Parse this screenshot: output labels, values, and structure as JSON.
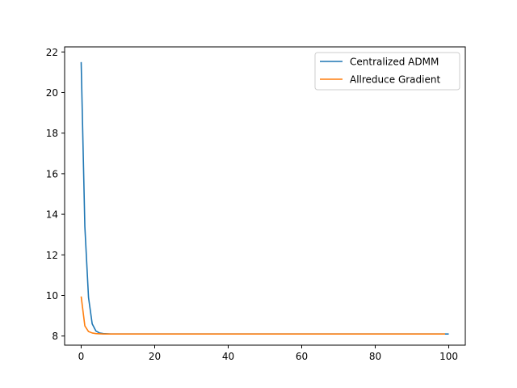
{
  "chart_data": {
    "type": "line",
    "title": "",
    "xlabel": "",
    "ylabel": "",
    "xlim": [
      -4.5,
      104.5
    ],
    "ylim": [
      7.55,
      22.25
    ],
    "xticks": [
      0,
      20,
      40,
      60,
      80,
      100
    ],
    "yticks": [
      8,
      10,
      12,
      14,
      16,
      18,
      20,
      22
    ],
    "grid": false,
    "legend_position": "top-right",
    "series": [
      {
        "name": "Centralized ADMM",
        "color": "#1f77b4",
        "x": [
          0,
          1,
          2,
          3,
          4,
          5,
          6,
          7,
          8,
          10,
          15,
          20,
          30,
          40,
          50,
          60,
          70,
          80,
          90,
          100
        ],
        "y": [
          21.5,
          13.4,
          9.9,
          8.6,
          8.25,
          8.15,
          8.12,
          8.11,
          8.1,
          8.1,
          8.1,
          8.1,
          8.1,
          8.1,
          8.1,
          8.1,
          8.1,
          8.1,
          8.1,
          8.1
        ]
      },
      {
        "name": "Allreduce Gradient",
        "color": "#ff7f0e",
        "x": [
          0,
          1,
          2,
          3,
          4,
          5,
          6,
          8,
          10,
          15,
          20,
          30,
          40,
          50,
          60,
          70,
          80,
          90,
          99
        ],
        "y": [
          9.95,
          8.5,
          8.22,
          8.15,
          8.12,
          8.11,
          8.1,
          8.1,
          8.1,
          8.1,
          8.1,
          8.1,
          8.1,
          8.1,
          8.1,
          8.1,
          8.1,
          8.1,
          8.1
        ]
      }
    ]
  }
}
